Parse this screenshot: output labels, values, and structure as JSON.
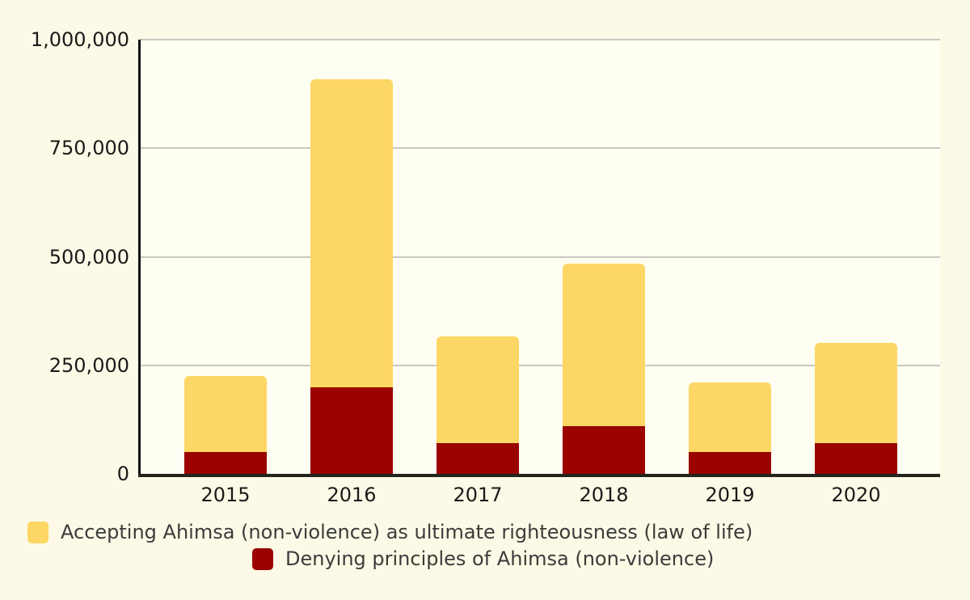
{
  "chart_data": {
    "type": "bar",
    "stacked": true,
    "title": "",
    "xlabel": "",
    "ylabel": "",
    "categories": [
      "2015",
      "2016",
      "2017",
      "2018",
      "2019",
      "2020"
    ],
    "series": [
      {
        "name": "Accepting Ahimsa (non-violence) as ultimate righteousness (law of life)",
        "color": "#FDD765",
        "values": [
          175000,
          710000,
          245000,
          375000,
          160000,
          230000
        ]
      },
      {
        "name": "Denying principles of Ahimsa (non-violence)",
        "color": "#9A0300",
        "values": [
          50000,
          200000,
          70000,
          110000,
          50000,
          70000
        ]
      }
    ],
    "stack_totals": [
      225000,
      910000,
      315000,
      485000,
      210000,
      300000
    ],
    "ylim": [
      0,
      1000000
    ],
    "yticks": [
      {
        "value": 0,
        "label": "0"
      },
      {
        "value": 250000,
        "label": "250,000"
      },
      {
        "value": 500000,
        "label": "500,000"
      },
      {
        "value": 750000,
        "label": "750,000"
      },
      {
        "value": 1000000,
        "label": "1,000,000"
      }
    ],
    "grid": true,
    "legend_position": "bottom"
  },
  "colors": {
    "page_background": "#FCFAE6",
    "plot_background": "#FFFEF2",
    "gridline": "#C9C8C0",
    "axis_line": "#23251C",
    "tick_text": "#1A1A1A",
    "legend_text": "#3B3B3B"
  }
}
